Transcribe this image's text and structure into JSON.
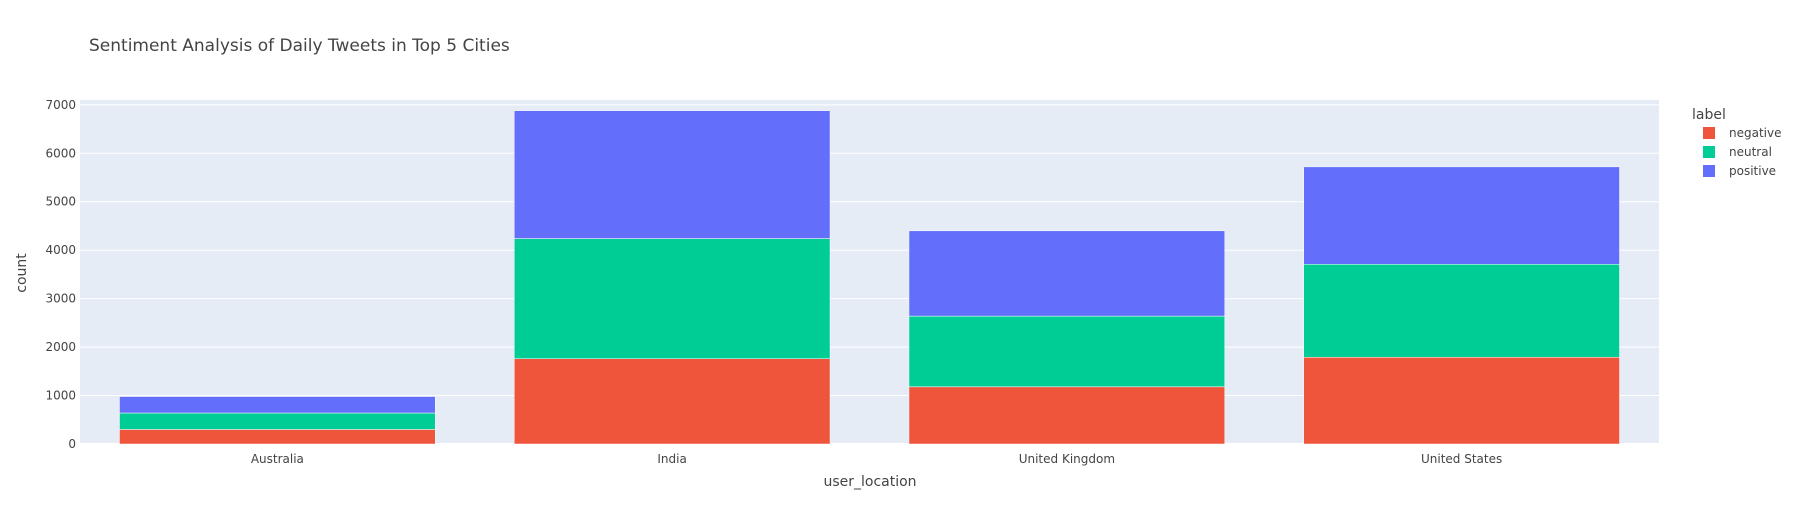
{
  "chart_data": {
    "type": "bar",
    "barmode": "stack",
    "title": "Sentiment Analysis of Daily Tweets in Top 5 Cities",
    "xlabel": "user_location",
    "ylabel": "count",
    "categories": [
      "Australia",
      "India",
      "United Kingdom",
      "United States"
    ],
    "series": [
      {
        "name": "negative",
        "color": "#EF553B",
        "values": [
          300,
          1760,
          1180,
          1790
        ]
      },
      {
        "name": "neutral",
        "color": "#00CC96",
        "values": [
          340,
          2480,
          1460,
          1920
        ]
      },
      {
        "name": "positive",
        "color": "#636EFA",
        "values": [
          340,
          2640,
          1760,
          2010
        ]
      }
    ],
    "ylim": [
      0,
      7100
    ],
    "yticks": [
      0,
      1000,
      2000,
      3000,
      4000,
      5000,
      6000,
      7000
    ],
    "ytick_labels": [
      "0",
      "1000",
      "2000",
      "3000",
      "4000",
      "5000",
      "6000",
      "7000"
    ],
    "legend": {
      "title": "label",
      "position": "top-right"
    },
    "grid": true,
    "plot_background": "#E5ECF6"
  }
}
